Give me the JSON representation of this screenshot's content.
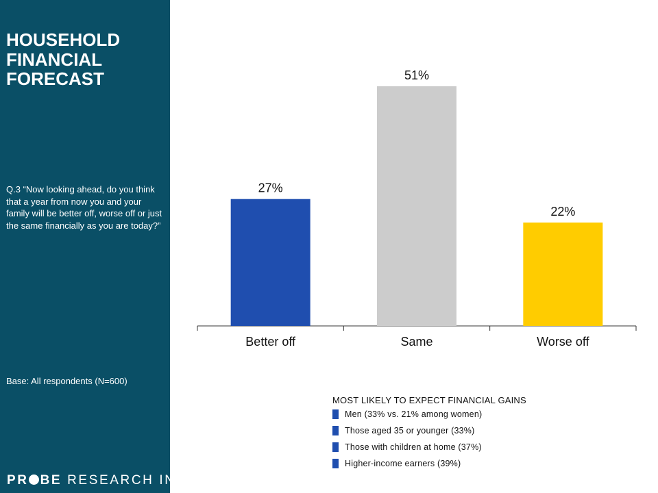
{
  "sidebar": {
    "title_lines": [
      "HOUSEHOLD",
      "FINANCIAL",
      "FORECAST"
    ],
    "question": "Q.3 “Now looking ahead, do you think that a year from now you and your family will be better off, worse off or just the same financially as you are today?”",
    "base": "Base: All respondents (N=600)",
    "logo": {
      "part1": "PR",
      "part2": "BE",
      "part3": " RESEARCH INC.",
      "icon": "probe-logo-dot"
    }
  },
  "colors": {
    "sidebar": "#0a4f66",
    "accent": "#1f4eaf"
  },
  "chart_data": {
    "type": "bar",
    "title": "",
    "xlabel": "",
    "ylabel": "",
    "categories": [
      "Better off",
      "Same",
      "Worse off"
    ],
    "values": [
      27,
      51,
      22
    ],
    "data_labels": [
      "27%",
      "51%",
      "22%"
    ],
    "colors": [
      "#1f4eaf",
      "#cccccc",
      "#ffcc00"
    ],
    "ylim": [
      0,
      100
    ],
    "grid": false,
    "legend": "none"
  },
  "notes": {
    "title": "MOST LIKELY TO EXPECT FINANCIAL GAINS",
    "bullet_color": "#1f4eaf",
    "items": [
      "Men (33% vs. 21% among women)",
      "Those aged 35 or younger (33%)",
      "Those with children at home (37%)",
      "Higher-income earners (39%)"
    ]
  }
}
